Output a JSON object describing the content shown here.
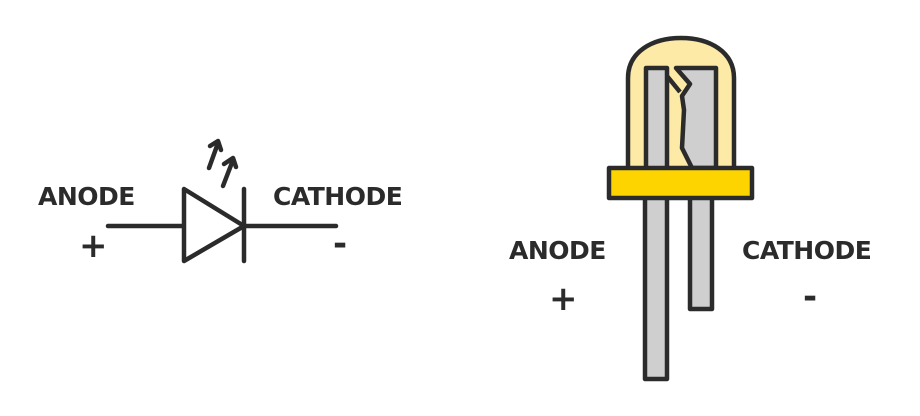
{
  "symbol": {
    "anode_label": "ANODE",
    "cathode_label": "CATHODE",
    "anode_sign": "+",
    "cathode_sign": "-"
  },
  "physical": {
    "anode_label": "ANODE",
    "cathode_label": "CATHODE",
    "anode_sign": "+",
    "cathode_sign": "-"
  },
  "colors": {
    "stroke": "#2b2b2b",
    "lens": "#fdeaa6",
    "rim": "#fdd400",
    "lead": "#cfcfcf"
  }
}
